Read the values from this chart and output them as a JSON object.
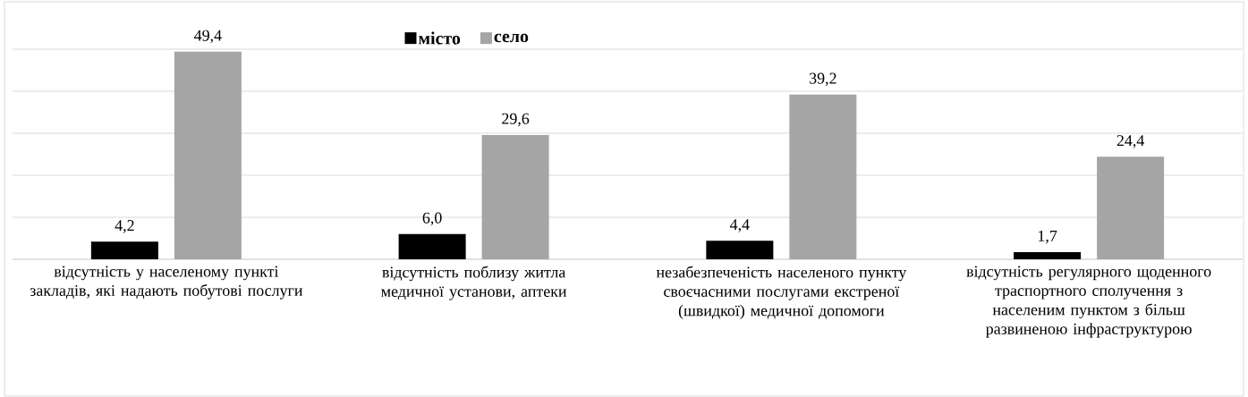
{
  "chart_data": {
    "type": "bar",
    "categories": [
      "відсутність у населеному пункті закладів, які надають побутові послуги",
      "відсутність поблизу житла медичної установи, аптеки",
      "незабезпеченість населеного пункту своєчасними послугами екстреної (швидкої) медичної допомоги",
      "відсутність регулярного щоденного траспортного сполучення з населеним пунктом з більш развиненою інфраструктурою"
    ],
    "series": [
      {
        "name": "місто",
        "color": "#000000",
        "values": [
          4.2,
          6.0,
          4.4,
          1.7
        ],
        "value_labels": [
          "4,2",
          "6,0",
          "4,4",
          "1,7"
        ]
      },
      {
        "name": "село",
        "color": "#a5a5a5",
        "values": [
          49.4,
          29.6,
          39.2,
          24.4
        ],
        "value_labels": [
          "49,4",
          "29,6",
          "39,2",
          "24,4"
        ]
      }
    ],
    "ylim": [
      0,
      50
    ],
    "tick_labels": "x",
    "grid": "y",
    "legend": "top"
  }
}
